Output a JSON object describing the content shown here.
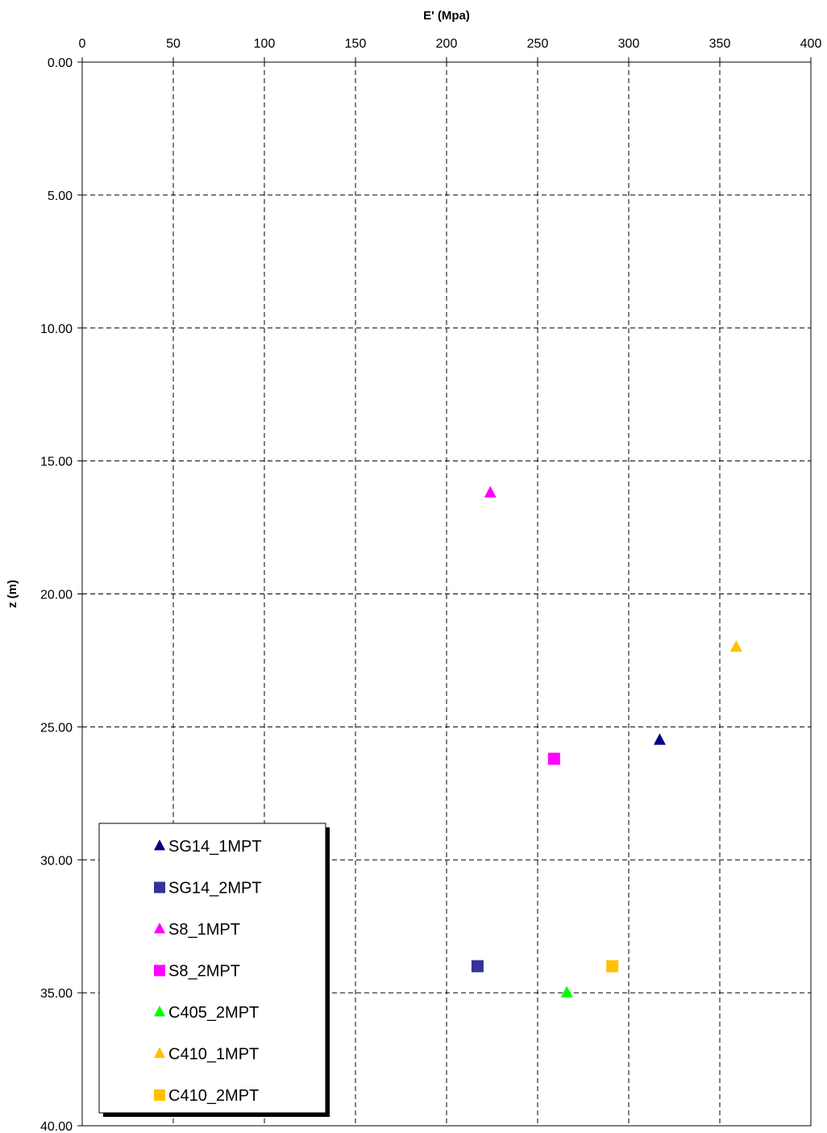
{
  "chart_data": {
    "type": "scatter",
    "xlabel": "E' (Mpa)",
    "ylabel": "z (m)",
    "x_axis_position": "top",
    "y_axis_inverted": true,
    "xlim": [
      0,
      400
    ],
    "ylim": [
      0,
      40
    ],
    "x_ticks": [
      "0",
      "50",
      "100",
      "150",
      "200",
      "250",
      "300",
      "350",
      "400"
    ],
    "y_ticks": [
      "0.00",
      "5.00",
      "10.00",
      "15.00",
      "20.00",
      "25.00",
      "30.00",
      "35.00",
      "40.00"
    ],
    "grid": true,
    "grid_style": "dashed",
    "legend_position": "bottom-left",
    "series": [
      {
        "name": "SG14_1MPT",
        "marker": "triangle",
        "color": "#000080",
        "points": [
          {
            "x": 317,
            "y": 25.5
          }
        ]
      },
      {
        "name": "SG14_2MPT",
        "marker": "square",
        "color": "#333399",
        "points": [
          {
            "x": 217,
            "y": 34.0
          }
        ]
      },
      {
        "name": "S8_1MPT",
        "marker": "triangle",
        "color": "#FF00FF",
        "points": [
          {
            "x": 224,
            "y": 16.2
          }
        ]
      },
      {
        "name": "S8_2MPT",
        "marker": "square",
        "color": "#FF00FF",
        "points": [
          {
            "x": 259,
            "y": 26.2
          }
        ]
      },
      {
        "name": "C405_2MPT",
        "marker": "triangle",
        "color": "#00FF00",
        "points": [
          {
            "x": 266,
            "y": 35.0
          }
        ]
      },
      {
        "name": "C410_1MPT",
        "marker": "triangle",
        "color": "#FFC000",
        "points": [
          {
            "x": 359,
            "y": 22.0
          }
        ]
      },
      {
        "name": "C410_2MPT",
        "marker": "square",
        "color": "#FFC000",
        "points": [
          {
            "x": 291,
            "y": 34.0
          }
        ]
      }
    ]
  }
}
